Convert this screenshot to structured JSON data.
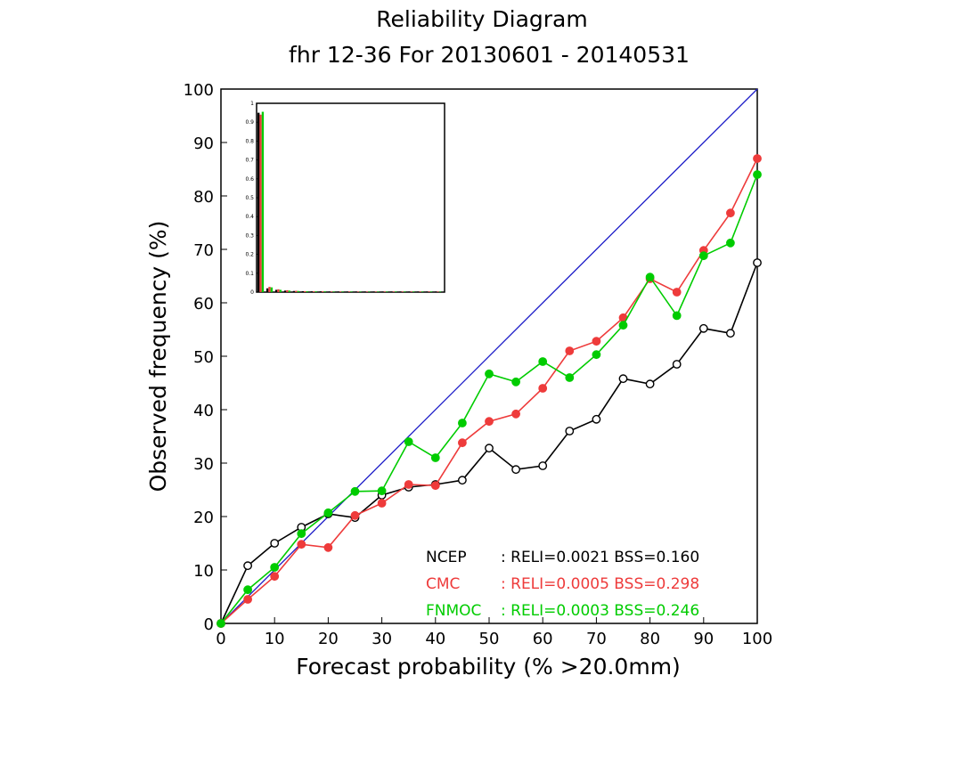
{
  "chart_data": {
    "type": "line",
    "title": "Reliability Diagram",
    "subtitle": "fhr 12-36 For 20130601 - 20140531",
    "xlabel": "Forecast probability (% >20.0mm)",
    "ylabel": "Observed frequency (%)",
    "xlim": [
      0,
      100
    ],
    "ylim": [
      0,
      100
    ],
    "xticks": [
      "0",
      "10",
      "20",
      "30",
      "40",
      "50",
      "60",
      "70",
      "80",
      "90",
      "100"
    ],
    "yticks": [
      "0",
      "10",
      "20",
      "30",
      "40",
      "50",
      "60",
      "70",
      "80",
      "90",
      "100"
    ],
    "grid": false,
    "diagonal": {
      "x": [
        0,
        100
      ],
      "y": [
        0,
        100
      ],
      "color": "#1c1cc8"
    },
    "x": [
      0,
      5,
      10,
      15,
      20,
      25,
      30,
      35,
      40,
      45,
      50,
      55,
      60,
      65,
      70,
      75,
      80,
      85,
      90,
      95,
      100
    ],
    "series": [
      {
        "name": "NCEP",
        "stats": ": RELI=0.0021  BSS=0.160",
        "color": "#000000",
        "marker": "open-circle",
        "y": [
          0,
          10.8,
          15.0,
          18.0,
          20.5,
          19.8,
          24.0,
          25.5,
          26.0,
          26.8,
          32.8,
          28.8,
          29.5,
          36.0,
          38.2,
          45.8,
          44.8,
          48.5,
          55.2,
          54.3,
          67.5
        ]
      },
      {
        "name": "CMC",
        "stats": ": RELI=0.0005  BSS=0.298",
        "color": "#ee3b3b",
        "marker": "filled-circle",
        "y": [
          0,
          4.5,
          8.8,
          14.8,
          14.2,
          20.2,
          22.5,
          26.0,
          25.8,
          33.8,
          37.8,
          39.2,
          44.0,
          51.0,
          52.8,
          57.2,
          64.5,
          62.0,
          69.8,
          76.8,
          87.0
        ]
      },
      {
        "name": "FNMOC",
        "stats": ": RELI=0.0003  BSS=0.246",
        "color": "#00cc00",
        "marker": "filled-circle",
        "y": [
          0,
          6.3,
          10.5,
          16.8,
          20.7,
          24.7,
          24.8,
          34.0,
          31.0,
          37.5,
          46.7,
          45.2,
          49.0,
          46.0,
          50.3,
          55.8,
          64.8,
          57.6,
          68.8,
          71.2,
          84.0
        ]
      }
    ],
    "inset": {
      "type": "bar",
      "ylim": [
        0,
        1
      ],
      "yticks": [
        "0",
        "0.1",
        "0.2",
        "0.3",
        "0.4",
        "0.5",
        "0.6",
        "0.7",
        "0.8",
        "0.9",
        "1"
      ],
      "series": [
        {
          "name": "NCEP",
          "color": "#000000",
          "values": [
            0.95,
            0.02,
            0.012,
            0.008,
            0.006,
            0.005,
            0.004,
            0.004,
            0.003,
            0.003,
            0.003,
            0.003,
            0.003,
            0.003,
            0.003,
            0.003,
            0.003,
            0.003,
            0.003,
            0.003,
            0.003
          ]
        },
        {
          "name": "CMC",
          "color": "#ee3b3b",
          "values": [
            0.94,
            0.028,
            0.015,
            0.01,
            0.007,
            0.005,
            0.004,
            0.004,
            0.003,
            0.003,
            0.003,
            0.003,
            0.003,
            0.003,
            0.003,
            0.003,
            0.003,
            0.003,
            0.003,
            0.003,
            0.003
          ]
        },
        {
          "name": "FNMOC",
          "color": "#00cc00",
          "values": [
            0.955,
            0.025,
            0.012,
            0.008,
            0.006,
            0.005,
            0.004,
            0.004,
            0.003,
            0.003,
            0.003,
            0.003,
            0.003,
            0.003,
            0.003,
            0.003,
            0.003,
            0.003,
            0.003,
            0.003,
            0.003
          ]
        }
      ]
    },
    "legend_position": "bottom-right"
  }
}
